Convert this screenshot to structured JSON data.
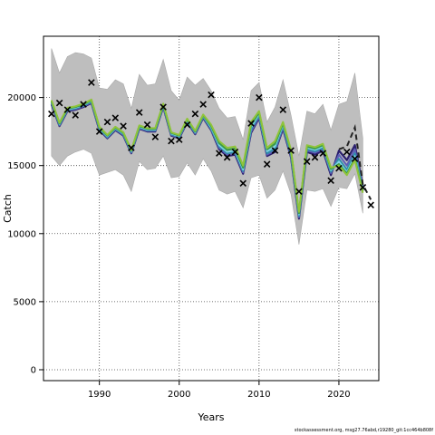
{
  "chart_data": {
    "type": "line",
    "xlabel": "Years",
    "ylabel": "Catch",
    "xlim": [
      1983,
      2025
    ],
    "ylim": [
      -800,
      24500
    ],
    "x_ticks": [
      1990,
      2000,
      2010,
      2020
    ],
    "y_ticks": [
      0,
      5000,
      10000,
      15000,
      20000
    ],
    "grid": true,
    "footer": "stockassessment.org, msg27.76abd,r19280_git:1cc464b808f",
    "colors": {
      "band": "#bebebe",
      "band_edge": "#a9a9a9",
      "observed": "#000000",
      "dashed": "#222222",
      "series": [
        "#2b1f6e",
        "#5d5fb8",
        "#2f8fa8",
        "#7fd3e8",
        "#3c9a4a",
        "#8fc43a"
      ]
    },
    "years": [
      1984,
      1985,
      1986,
      1987,
      1988,
      1989,
      1990,
      1991,
      1992,
      1993,
      1994,
      1995,
      1996,
      1997,
      1998,
      1999,
      2000,
      2001,
      2002,
      2003,
      2004,
      2005,
      2006,
      2007,
      2008,
      2009,
      2010,
      2011,
      2012,
      2013,
      2014,
      2015,
      2016,
      2017,
      2018,
      2019,
      2020,
      2021,
      2022,
      2023
    ],
    "observed_x": [
      1984,
      1985,
      1986,
      1987,
      1988,
      1989,
      1990,
      1991,
      1992,
      1993,
      1994,
      1995,
      1996,
      1997,
      1998,
      1999,
      2000,
      2001,
      2002,
      2003,
      2004,
      2005,
      2006,
      2007,
      2008,
      2009,
      2010,
      2011,
      2012,
      2013,
      2014,
      2015,
      2016,
      2017,
      2018,
      2019,
      2020,
      2021,
      2022,
      2023,
      2024
    ],
    "observed_y": [
      18800,
      19600,
      19100,
      18700,
      19500,
      21100,
      17500,
      18200,
      18500,
      17900,
      16300,
      18900,
      18000,
      17100,
      19300,
      16800,
      16900,
      18000,
      18800,
      19500,
      20200,
      15900,
      15600,
      16000,
      13700,
      18100,
      20000,
      15100,
      16100,
      19100,
      16100,
      13100,
      15300,
      15600,
      15900,
      13900,
      14800,
      16000,
      15500,
      13400,
      12100
    ],
    "band_upper": [
      23600,
      21800,
      23000,
      23300,
      23200,
      22900,
      20700,
      20600,
      21300,
      21000,
      19200,
      21700,
      20900,
      21000,
      22800,
      20500,
      19800,
      21500,
      20900,
      21400,
      20500,
      19200,
      18500,
      18600,
      16900,
      20500,
      21100,
      18200,
      19300,
      21300,
      18700,
      15700,
      19000,
      18800,
      19500,
      17600,
      19500,
      19700,
      21800,
      17000
    ],
    "band_lower": [
      15700,
      15000,
      15700,
      16000,
      16200,
      15900,
      14300,
      14500,
      14700,
      14300,
      13100,
      15300,
      14700,
      14800,
      15700,
      14100,
      14200,
      15200,
      14300,
      15500,
      14600,
      13200,
      12900,
      13100,
      11900,
      14100,
      14300,
      12600,
      13200,
      14600,
      12900,
      9200,
      13200,
      13100,
      13300,
      12000,
      13400,
      13300,
      14400,
      11500
    ],
    "dashed_x": [
      2020,
      2021,
      2022,
      2023,
      2024
    ],
    "dashed_y": [
      16200,
      16400,
      17800,
      13600,
      12500
    ],
    "series": [
      {
        "values": [
          19500,
          17900,
          19000,
          19100,
          19300,
          19600,
          17600,
          17000,
          17600,
          17200,
          15900,
          17700,
          17500,
          17500,
          19300,
          17200,
          17000,
          18200,
          17300,
          18500,
          17600,
          16200,
          15700,
          15800,
          14400,
          17400,
          18500,
          15700,
          16000,
          17700,
          15600,
          11100,
          16000,
          15800,
          16100,
          14300,
          16100,
          15400,
          16500,
          13500
        ]
      },
      {
        "values": [
          19600,
          17950,
          19050,
          19150,
          19350,
          19650,
          17650,
          17050,
          17650,
          17250,
          15950,
          17750,
          17550,
          17550,
          19350,
          17250,
          17050,
          18250,
          17350,
          18550,
          17650,
          16300,
          15800,
          15900,
          14500,
          17500,
          18600,
          15800,
          16100,
          17800,
          15700,
          11200,
          16100,
          15950,
          16200,
          14450,
          15800,
          15000,
          16200,
          13400
        ]
      },
      {
        "values": [
          19650,
          18000,
          19100,
          19200,
          19400,
          19700,
          17700,
          17100,
          17700,
          17300,
          16000,
          17800,
          17600,
          17600,
          19400,
          17300,
          17100,
          18300,
          17400,
          18600,
          17700,
          16400,
          15900,
          16000,
          14600,
          17650,
          18700,
          15900,
          16250,
          17900,
          15800,
          11300,
          16200,
          16050,
          16300,
          14550,
          15500,
          14700,
          15900,
          13300
        ]
      },
      {
        "values": [
          19700,
          18050,
          19150,
          19250,
          19450,
          19750,
          17750,
          17150,
          17750,
          17350,
          16050,
          17850,
          17650,
          17650,
          19450,
          17350,
          17150,
          18350,
          17450,
          18650,
          17800,
          16500,
          16000,
          16100,
          14700,
          17800,
          18800,
          16050,
          16400,
          18000,
          15950,
          11400,
          16300,
          16150,
          16400,
          14650,
          15300,
          14500,
          15700,
          13200
        ]
      },
      {
        "values": [
          19750,
          18100,
          19200,
          19300,
          19500,
          19800,
          17800,
          17200,
          17800,
          17400,
          16100,
          17900,
          17700,
          17700,
          19500,
          17400,
          17200,
          18400,
          17500,
          18700,
          17900,
          16650,
          16150,
          16250,
          14850,
          18000,
          18900,
          16200,
          16600,
          18100,
          16050,
          11500,
          16400,
          16250,
          16500,
          14750,
          15100,
          14400,
          15500,
          13100
        ]
      },
      {
        "values": [
          19800,
          18150,
          19250,
          19350,
          19550,
          19850,
          17850,
          17250,
          17850,
          17450,
          16150,
          17950,
          17750,
          17750,
          19550,
          17450,
          17250,
          18450,
          17550,
          18750,
          18000,
          16800,
          16300,
          16400,
          15000,
          18200,
          19000,
          16300,
          16800,
          18200,
          16150,
          11600,
          16500,
          16350,
          16600,
          14850,
          15000,
          14300,
          15400,
          13000
        ]
      }
    ]
  }
}
